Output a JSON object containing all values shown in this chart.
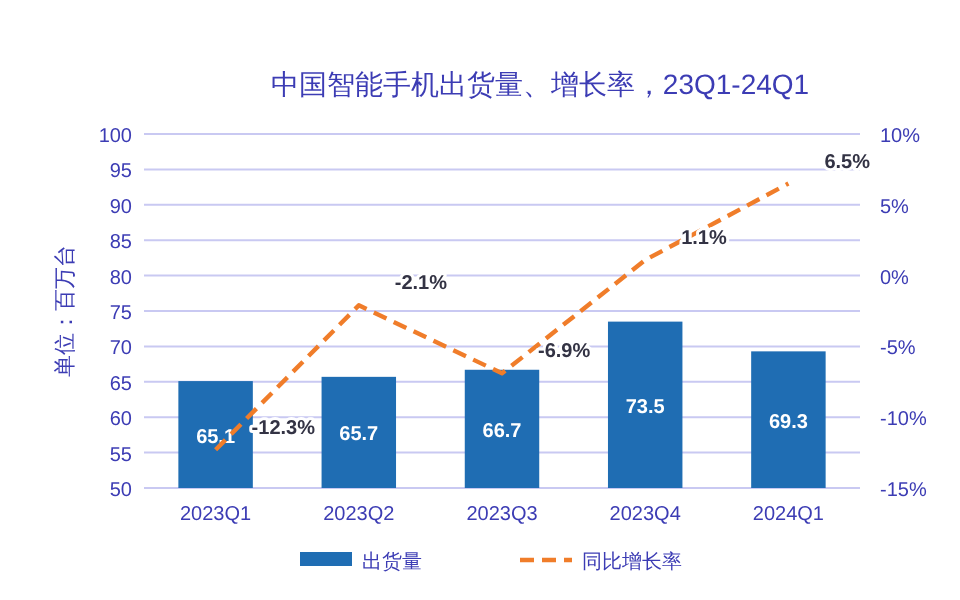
{
  "chart_data": {
    "type": "bar",
    "title": "中国智能手机出货量、增长率，23Q1-24Q1",
    "ylabel": "单位：百万台",
    "categories": [
      "2023Q1",
      "2023Q2",
      "2023Q3",
      "2023Q4",
      "2024Q1"
    ],
    "series": [
      {
        "name": "出货量",
        "color": "#1f6db3",
        "values": [
          65.1,
          65.7,
          66.7,
          73.5,
          69.3
        ],
        "value_labels": [
          "65,1",
          "65.7",
          "66.7",
          "73.5",
          "69.3"
        ]
      },
      {
        "name": "同比增长率",
        "type": "line",
        "axis": "y2",
        "color": "#f07d2a",
        "line_style": "dashed",
        "values": [
          -12.3,
          -2.1,
          -6.9,
          1.1,
          6.5
        ],
        "value_labels": [
          "-12.3%",
          "-2.1%",
          "-6.9%",
          "1.1%",
          "6.5%"
        ]
      }
    ],
    "ylim": [
      50,
      100
    ],
    "yticks": [
      50,
      55,
      60,
      65,
      70,
      75,
      80,
      85,
      90,
      95,
      100
    ],
    "y2lim": [
      -15,
      10
    ],
    "y2ticks": [
      {
        "value": -15,
        "label": "-15%"
      },
      {
        "value": -10,
        "label": "-10%"
      },
      {
        "value": -5,
        "label": "-5%"
      },
      {
        "value": 0,
        "label": "0%"
      },
      {
        "value": 5,
        "label": "5%"
      },
      {
        "value": 10,
        "label": "10%"
      }
    ],
    "grid": "y",
    "legend": "bottom",
    "marker": "none"
  }
}
